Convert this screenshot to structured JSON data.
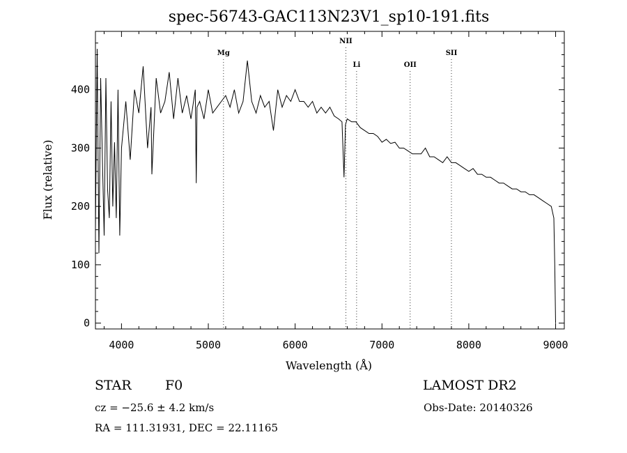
{
  "chart_data": {
    "type": "line",
    "title": "spec-56743-GAC113N23V1_sp10-191.fits",
    "xlabel": "Wavelength (Å)",
    "ylabel": "Flux (relative)",
    "xlim": [
      3700,
      9100
    ],
    "ylim": [
      -10,
      500
    ],
    "xticks": [
      4000,
      5000,
      6000,
      7000,
      8000,
      9000
    ],
    "yticks": [
      0,
      100,
      200,
      300,
      400
    ],
    "grid": false,
    "series": [
      {
        "x": [
          3700,
          3720,
          3740,
          3760,
          3780,
          3800,
          3820,
          3840,
          3860,
          3880,
          3900,
          3920,
          3940,
          3960,
          3980,
          4000,
          4050,
          4100,
          4150,
          4200,
          4250,
          4300,
          4340,
          4350,
          4400,
          4450,
          4500,
          4550,
          4600,
          4650,
          4700,
          4750,
          4800,
          4850,
          4861,
          4870,
          4900,
          4950,
          5000,
          5050,
          5100,
          5150,
          5200,
          5250,
          5300,
          5350,
          5400,
          5450,
          5500,
          5550,
          5600,
          5650,
          5700,
          5750,
          5800,
          5850,
          5900,
          5950,
          6000,
          6050,
          6100,
          6150,
          6200,
          6250,
          6300,
          6350,
          6400,
          6450,
          6500,
          6540,
          6563,
          6580,
          6600,
          6650,
          6700,
          6750,
          6800,
          6850,
          6900,
          6950,
          7000,
          7050,
          7100,
          7150,
          7200,
          7250,
          7300,
          7350,
          7400,
          7450,
          7500,
          7550,
          7600,
          7650,
          7700,
          7750,
          7800,
          7850,
          7900,
          7950,
          8000,
          8050,
          8100,
          8150,
          8200,
          8250,
          8300,
          8350,
          8400,
          8450,
          8500,
          8550,
          8600,
          8650,
          8700,
          8750,
          8800,
          8850,
          8900,
          8950,
          8980,
          8990,
          9000
        ],
        "y": [
          160,
          470,
          120,
          420,
          280,
          150,
          420,
          230,
          180,
          380,
          200,
          310,
          180,
          400,
          150,
          300,
          380,
          280,
          400,
          360,
          440,
          300,
          370,
          255,
          420,
          360,
          380,
          430,
          350,
          420,
          360,
          390,
          350,
          400,
          240,
          370,
          380,
          350,
          400,
          360,
          370,
          380,
          390,
          370,
          400,
          360,
          380,
          450,
          380,
          360,
          390,
          370,
          380,
          330,
          400,
          370,
          390,
          380,
          400,
          380,
          380,
          370,
          380,
          360,
          370,
          360,
          370,
          355,
          350,
          345,
          250,
          340,
          350,
          345,
          345,
          335,
          330,
          325,
          325,
          320,
          310,
          315,
          308,
          310,
          300,
          300,
          295,
          290,
          290,
          290,
          300,
          285,
          285,
          280,
          275,
          285,
          275,
          275,
          270,
          265,
          260,
          265,
          255,
          255,
          250,
          250,
          245,
          240,
          240,
          235,
          230,
          230,
          225,
          225,
          220,
          220,
          215,
          210,
          205,
          200,
          180,
          100,
          0
        ]
      }
    ],
    "annotations": [
      {
        "label": "Mg",
        "x": 5175
      },
      {
        "label": "NII",
        "x": 6584
      },
      {
        "label": "Li",
        "x": 6708
      },
      {
        "label": "OII",
        "x": 7325
      },
      {
        "label": "SII",
        "x": 7800
      }
    ]
  },
  "info": {
    "object_class": "STAR",
    "subclass": "F0",
    "survey": "LAMOST DR2",
    "cz": "cz = −25.6 ± 4.2 km/s",
    "obs_date": "Obs-Date: 20140326",
    "coords": "RA = 111.31931, DEC =  22.11165"
  }
}
